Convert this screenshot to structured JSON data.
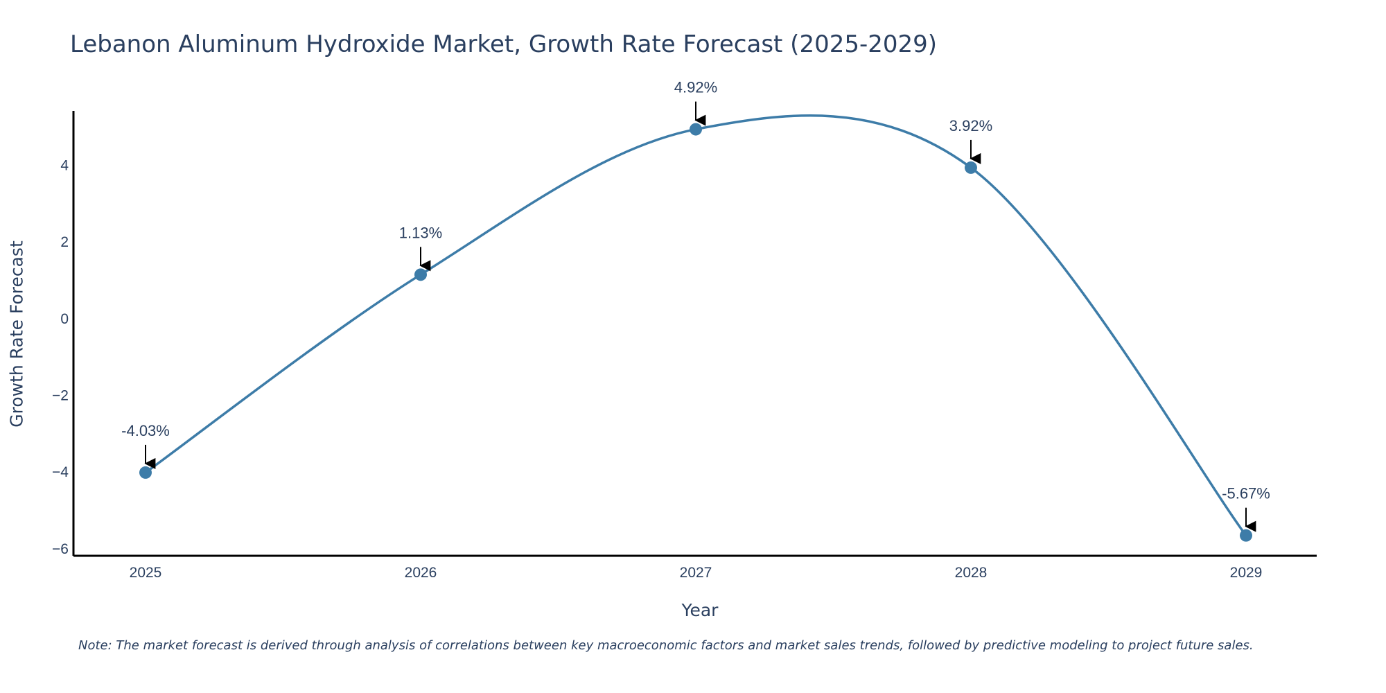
{
  "chart_data": {
    "type": "line",
    "title": "Lebanon Aluminum Hydroxide Market, Growth Rate Forecast (2025-2029)",
    "xlabel": "Year",
    "ylabel": "Growth Rate Forecast",
    "categories": [
      "2025",
      "2026",
      "2027",
      "2028",
      "2029"
    ],
    "series": [
      {
        "name": "Growth Rate Forecast",
        "values": [
          -4.03,
          1.13,
          4.92,
          3.92,
          -5.67
        ],
        "color": "#3d7ca8"
      }
    ],
    "annotations": [
      "-4.03%",
      "1.13%",
      "4.92%",
      "3.92%",
      "-5.67%"
    ],
    "yticks": [
      -6,
      -4,
      -2,
      0,
      2,
      4
    ],
    "ytick_labels": [
      "−6",
      "−4",
      "−2",
      "0",
      "2",
      "4"
    ],
    "ylim": [
      -6.2,
      5.4
    ],
    "grid": false,
    "note": "Note: The market forecast is derived through analysis of correlations between key macroeconomic factors and market sales trends, followed by predictive modeling to project future sales."
  }
}
